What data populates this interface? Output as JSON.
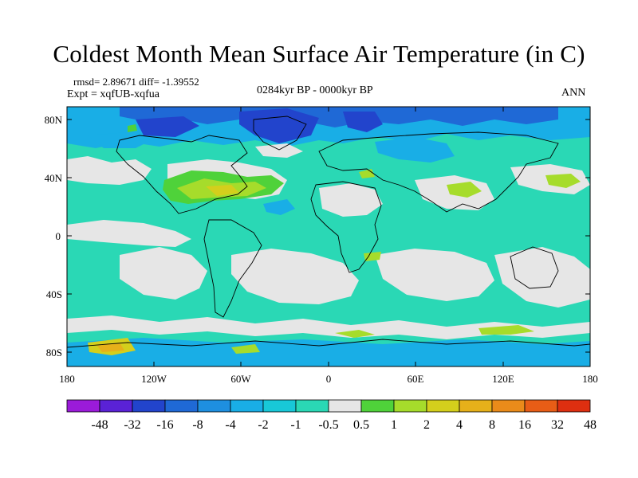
{
  "title": "Coldest Month Mean Surface Air Temperature (in C)",
  "stats": "rmsd= 2.89671  diff= -1.39552",
  "expt": "Expt = xqfUB-xqfua",
  "period": "0284kyr BP - 0000kyr BP",
  "season": "ANN",
  "lat_labels": [
    "80N",
    "40N",
    "0",
    "40S",
    "80S"
  ],
  "lon_labels": [
    "180",
    "120W",
    "60W",
    "0",
    "60E",
    "120E",
    "180"
  ],
  "colorbar": {
    "labels": [
      "-48",
      "-32",
      "-16",
      "-8",
      "-4",
      "-2",
      "-1",
      "-0.5",
      "0.5",
      "1",
      "2",
      "4",
      "8",
      "16",
      "32",
      "48"
    ],
    "colors": [
      "#9b1bd9",
      "#5a22d6",
      "#2244cc",
      "#1f69d6",
      "#1e8fe0",
      "#19aee6",
      "#18c8d8",
      "#2ad8b5",
      "#e6e6e6",
      "#4fd23a",
      "#a6dc2b",
      "#d4cf1c",
      "#e6b01a",
      "#ea8b1a",
      "#e85d16",
      "#de2f10"
    ]
  },
  "palette": {
    "white_zone": "#e6e6e6",
    "teal": "#2ad8b5",
    "cyan": "#18c8d8",
    "sky": "#19aee6",
    "blue": "#1f69d6",
    "deep_blue": "#2244cc",
    "green": "#4fd23a",
    "lime": "#a6dc2b",
    "yellow": "#d4cf1c",
    "gold": "#e6b01a"
  }
}
